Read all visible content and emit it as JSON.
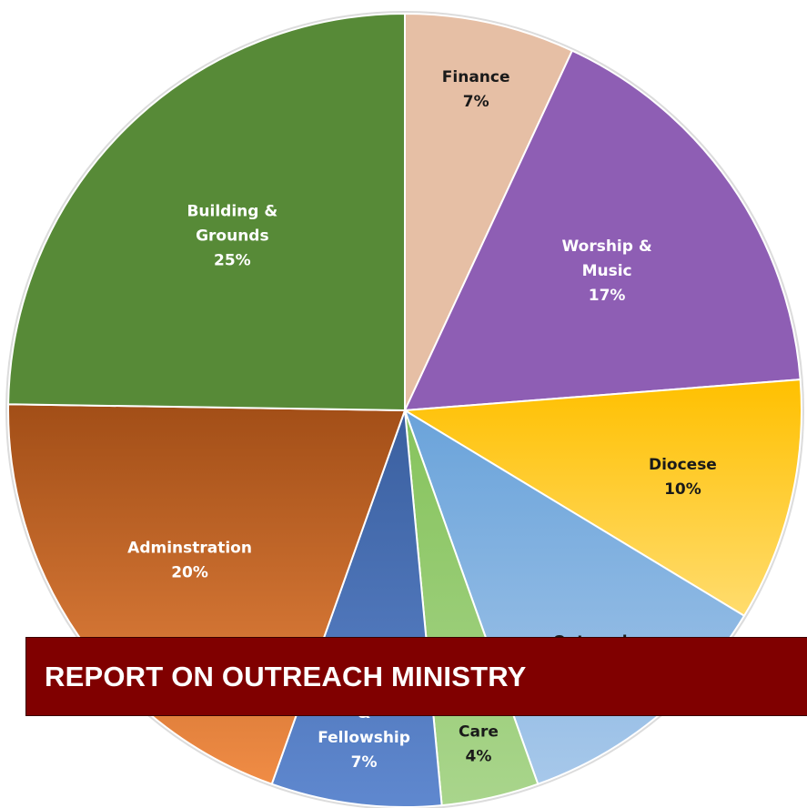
{
  "banner": {
    "title": "REPORT ON OUTREACH MINISTRY",
    "color": "#800000"
  },
  "chart_data": {
    "type": "pie",
    "slices": [
      {
        "label_lines": [
          "Finance",
          "7%"
        ],
        "value": 7,
        "color": "#e6bfa5",
        "text_color": "#1a1a1a"
      },
      {
        "label_lines": [
          "Worship &",
          "Music",
          "17%"
        ],
        "value": 17,
        "color": "#8e5eb4",
        "text_color": "#ffffff"
      },
      {
        "label_lines": [
          "Diocese",
          "10%"
        ],
        "value": 10,
        "color": "#ffc21a",
        "text_color": "#1a1a1a"
      },
      {
        "label_lines": [
          "Outreach"
        ],
        "value": 11,
        "color": "#8cb8e3",
        "text_color": "#1a1a1a"
      },
      {
        "label_lines": [
          "Care",
          "4%"
        ],
        "value": 4,
        "color": "#9bcd7a",
        "text_color": "#1a1a1a"
      },
      {
        "label_lines": [
          "&",
          "Fellowship",
          "7%"
        ],
        "value": 7,
        "color": "#4f76bd",
        "text_color": "#ffffff"
      },
      {
        "label_lines": [
          "Adminstration",
          "20%"
        ],
        "value": 20,
        "color": "#d9793a",
        "text_color": "#ffffff"
      },
      {
        "label_lines": [
          "Building &",
          "Grounds",
          "25%"
        ],
        "value": 25,
        "color": "#578a37",
        "text_color": "#ffffff"
      }
    ]
  }
}
